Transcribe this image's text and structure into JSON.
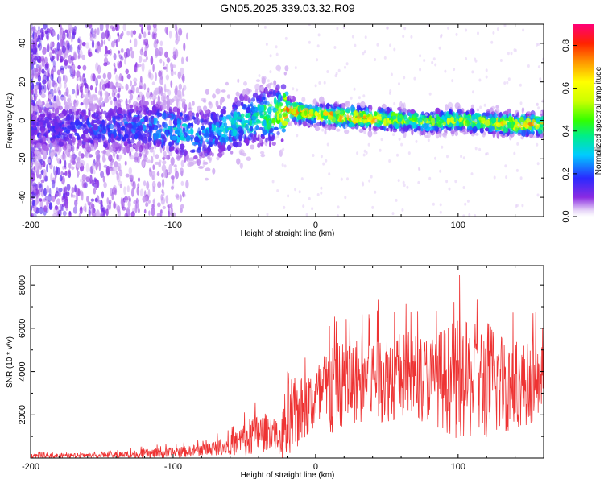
{
  "title": "GN05.2025.339.03.32.R09",
  "chart_data": [
    {
      "type": "heatmap",
      "xlabel": "Height of straight line (km)",
      "ylabel": "Frequency (Hz)",
      "xlim": [
        -200,
        160
      ],
      "ylim": [
        -50,
        50
      ],
      "xticks": [
        -200,
        -100,
        0,
        100
      ],
      "yticks": [
        -40,
        -20,
        0,
        20,
        40
      ],
      "colorbar": {
        "label": "Normalized spectral amplitude",
        "ticks": [
          0.0,
          0.2,
          0.4,
          0.6,
          0.8
        ],
        "tick_labels": [
          "0.0",
          "0.2",
          "0.4",
          "0.6",
          "0.8"
        ],
        "range": [
          0,
          0.9
        ],
        "colormap": "rainbow"
      },
      "description_of_data": "ridge",
      "ridge": {
        "x": [
          -200,
          -120,
          -100,
          -80,
          -60,
          -40,
          -25,
          -20,
          -10,
          0,
          20,
          40,
          60,
          80,
          100,
          120,
          140,
          160
        ],
        "frequency": [
          -5,
          -3,
          -5,
          -8,
          -3,
          2,
          3,
          6,
          4,
          3,
          2,
          1,
          0,
          -1,
          0,
          -1,
          -2,
          -2
        ],
        "peak_amplitude": [
          0.15,
          0.25,
          0.35,
          0.3,
          0.35,
          0.4,
          0.6,
          0.85,
          0.75,
          0.65,
          0.8,
          0.7,
          0.6,
          0.55,
          0.6,
          0.6,
          0.75,
          0.65
        ]
      }
    },
    {
      "type": "line",
      "xlabel": "Height of straight line (km)",
      "ylabel": "SNR (10 * v/v)",
      "xlim": [
        -200,
        160
      ],
      "ylim": [
        0,
        8900
      ],
      "xticks": [
        -200,
        -100,
        0,
        100
      ],
      "yticks": [
        2000,
        4000,
        6000,
        8000
      ],
      "series": [
        {
          "color": "#ee3333",
          "envelope": {
            "x": [
              -200,
              -150,
              -120,
              -100,
              -80,
              -60,
              -50,
              -40,
              -30,
              -25,
              -20,
              -15,
              -10,
              0,
              10,
              20,
              40,
              60,
              80,
              100,
              110,
              120,
              140,
              160
            ],
            "mean": [
              100,
              120,
              180,
              250,
              380,
              600,
              800,
              1100,
              1300,
              700,
              1600,
              1900,
              2200,
              2700,
              3000,
              3500,
              3700,
              3800,
              3700,
              3600,
              3500,
              3600,
              3400,
              3500
            ],
            "peak": [
              300,
              320,
              600,
              700,
              900,
              1400,
              2400,
              2900,
              2700,
              1800,
              6200,
              5200,
              5000,
              5600,
              7200,
              7000,
              7500,
              7600,
              7400,
              8700,
              8400,
              8800,
              7200,
              6600
            ]
          }
        }
      ]
    }
  ]
}
